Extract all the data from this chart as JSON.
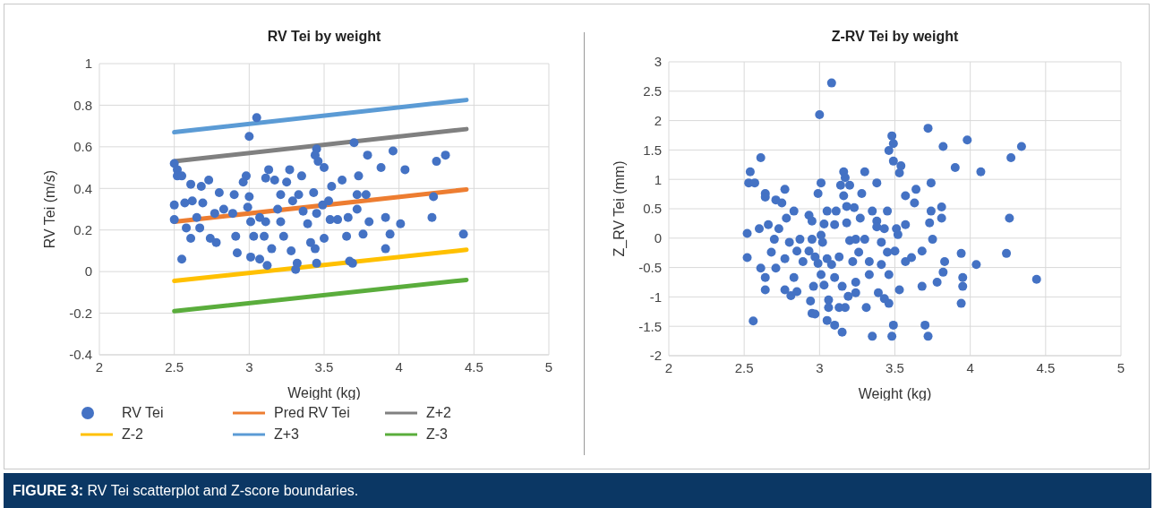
{
  "chart_data": [
    {
      "type": "scatter",
      "title": "RV Tei by weight",
      "xlabel": "Weight (kg)",
      "ylabel": "RV Tei (m/s)",
      "xlim": [
        2,
        5
      ],
      "xticks": [
        2,
        2.5,
        3,
        3.5,
        4,
        4.5,
        5
      ],
      "ylim": [
        -0.4,
        1
      ],
      "yticks": [
        -0.4,
        -0.2,
        0,
        0.2,
        0.4,
        0.6,
        0.8,
        1
      ],
      "grid": true,
      "legend": "bottom",
      "marker": "circle",
      "annotations": [
        "FIGURE 3: RV Tei scatterplot and Z-score boundaries."
      ],
      "series": [
        {
          "name": "RV Tei",
          "color": "#4472c4",
          "x": [
            3.05,
            3.0,
            2.5,
            2.52,
            2.52,
            2.55,
            2.61,
            2.5,
            2.5,
            2.55,
            2.57,
            2.62,
            2.68,
            2.73,
            2.69,
            2.65,
            2.58,
            2.61,
            2.67,
            2.74,
            2.77,
            2.8,
            2.83,
            2.78,
            2.9,
            2.89,
            2.91,
            2.92,
            2.98,
            2.96,
            3.0,
            2.99,
            3.01,
            3.01,
            3.07,
            3.03,
            3.07,
            3.1,
            3.13,
            3.11,
            3.17,
            3.12,
            3.15,
            3.11,
            3.19,
            3.21,
            3.25,
            3.27,
            3.21,
            3.23,
            3.28,
            3.31,
            3.32,
            3.29,
            3.35,
            3.33,
            3.36,
            3.39,
            3.41,
            3.44,
            3.43,
            3.45,
            3.44,
            3.46,
            3.5,
            3.45,
            3.45,
            3.49,
            3.5,
            3.55,
            3.53,
            3.59,
            3.54,
            3.62,
            3.66,
            3.65,
            3.69,
            3.67,
            3.7,
            3.73,
            3.72,
            3.72,
            3.78,
            3.79,
            3.8,
            3.76,
            3.88,
            3.91,
            3.94,
            3.91,
            3.96,
            4.04,
            4.01,
            4.22,
            4.23,
            4.25,
            4.31,
            4.43
          ],
          "values": [
            0.74,
            0.65,
            0.52,
            0.49,
            0.46,
            0.46,
            0.42,
            0.32,
            0.25,
            0.06,
            0.33,
            0.34,
            0.41,
            0.44,
            0.33,
            0.26,
            0.21,
            0.16,
            0.21,
            0.16,
            0.28,
            0.38,
            0.3,
            0.14,
            0.37,
            0.28,
            0.17,
            0.09,
            0.46,
            0.43,
            0.36,
            0.31,
            0.24,
            0.07,
            0.06,
            0.17,
            0.26,
            0.17,
            0.49,
            0.45,
            0.44,
            0.03,
            0.11,
            0.24,
            0.3,
            0.37,
            0.43,
            0.49,
            0.24,
            0.17,
            0.1,
            0.01,
            0.04,
            0.34,
            0.46,
            0.37,
            0.29,
            0.23,
            0.14,
            0.11,
            0.38,
            0.59,
            0.56,
            0.53,
            0.5,
            0.04,
            0.28,
            0.32,
            0.16,
            0.41,
            0.34,
            0.25,
            0.25,
            0.44,
            0.26,
            0.17,
            0.04,
            0.05,
            0.62,
            0.46,
            0.37,
            0.3,
            0.37,
            0.56,
            0.24,
            0.18,
            0.5,
            0.26,
            0.18,
            0.11,
            0.58,
            0.49,
            0.23,
            0.26,
            0.36,
            0.53,
            0.56,
            0.18
          ]
        },
        {
          "name": "Pred RV Tei",
          "type": "line",
          "marker": "none",
          "color": "#ed7d31",
          "x": [
            2.5,
            4.45
          ],
          "values": [
            0.24,
            0.395
          ]
        },
        {
          "name": "Z+2",
          "type": "line",
          "marker": "none",
          "color": "#808080",
          "x": [
            2.5,
            4.45
          ],
          "values": [
            0.53,
            0.685
          ]
        },
        {
          "name": "Z-2",
          "type": "line",
          "marker": "none",
          "color": "#ffc000",
          "x": [
            2.5,
            4.45
          ],
          "values": [
            -0.045,
            0.105
          ]
        },
        {
          "name": "Z+3",
          "type": "line",
          "marker": "none",
          "color": "#5b9bd5",
          "x": [
            2.5,
            4.45
          ],
          "values": [
            0.67,
            0.825
          ]
        },
        {
          "name": "Z-3",
          "type": "line",
          "marker": "none",
          "color": "#5aad3c",
          "x": [
            2.5,
            4.45
          ],
          "values": [
            -0.19,
            -0.04
          ]
        }
      ]
    },
    {
      "type": "scatter",
      "title": "Z-RV Tei by weight",
      "xlabel": "Weight (kg)",
      "ylabel": "Z_RV Tei (mm)",
      "xlim": [
        2,
        5
      ],
      "xticks": [
        2,
        2.5,
        3,
        3.5,
        4,
        4.5,
        5
      ],
      "ylim": [
        -2,
        3
      ],
      "yticks": [
        -2,
        -1.5,
        -1,
        -0.5,
        0,
        0.5,
        1,
        1.5,
        2,
        2.5,
        3
      ],
      "grid": true,
      "marker": "circle",
      "series": [
        {
          "color": "#4472c4",
          "x": [
            3.08,
            3.0,
            3.72,
            3.48,
            3.49,
            3.46,
            3.82,
            3.98,
            4.34,
            4.27,
            4.07,
            3.9,
            2.61,
            2.54,
            2.53,
            2.57,
            3.49,
            3.54,
            3.53,
            3.16,
            3.17,
            3.3,
            3.38,
            3.01,
            3.14,
            3.2,
            2.99,
            2.77,
            2.64,
            2.64,
            2.71,
            2.75,
            3.16,
            3.28,
            3.74,
            3.64,
            3.57,
            3.63,
            3.18,
            3.23,
            3.45,
            3.74,
            3.81,
            3.81,
            3.73,
            3.05,
            3.11,
            3.35,
            2.93,
            2.95,
            2.83,
            2.78,
            3.03,
            3.1,
            3.18,
            3.27,
            3.38,
            3.38,
            3.43,
            3.57,
            3.51,
            3.52,
            4.26,
            2.52,
            2.6,
            2.66,
            2.73,
            2.7,
            2.8,
            2.87,
            2.95,
            3.01,
            3.02,
            3.2,
            3.24,
            3.3,
            3.41,
            3.75,
            2.52,
            2.61,
            2.68,
            2.71,
            2.77,
            2.85,
            2.89,
            2.93,
            2.97,
            2.99,
            3.05,
            3.08,
            3.13,
            3.22,
            3.26,
            3.33,
            3.41,
            3.45,
            3.5,
            3.57,
            3.61,
            3.68,
            3.83,
            3.94,
            4.24,
            4.04,
            3.01,
            3.1,
            3.03,
            2.96,
            2.83,
            2.64,
            2.64,
            2.77,
            2.81,
            2.85,
            3.15,
            3.24,
            3.24,
            3.33,
            3.46,
            3.53,
            3.68,
            3.78,
            3.82,
            3.95,
            3.95,
            4.44,
            3.39,
            3.43,
            3.46,
            3.19,
            3.06,
            3.06,
            3.13,
            3.17,
            3.31,
            2.94,
            2.95,
            2.97,
            3.94,
            2.56,
            3.05,
            3.1,
            3.15,
            3.49,
            3.7,
            3.35,
            3.48,
            3.72
          ],
          "values": [
            2.64,
            2.1,
            1.87,
            1.74,
            1.61,
            1.49,
            1.56,
            1.67,
            1.56,
            1.37,
            1.13,
            1.2,
            1.37,
            1.13,
            0.94,
            0.94,
            1.31,
            1.23,
            1.11,
            1.13,
            1.03,
            1.13,
            0.94,
            0.94,
            0.9,
            0.9,
            0.76,
            0.83,
            0.76,
            0.7,
            0.65,
            0.6,
            0.72,
            0.76,
            0.94,
            0.83,
            0.72,
            0.6,
            0.54,
            0.52,
            0.46,
            0.46,
            0.53,
            0.34,
            0.26,
            0.46,
            0.46,
            0.46,
            0.39,
            0.29,
            0.46,
            0.34,
            0.24,
            0.23,
            0.26,
            0.34,
            0.29,
            0.19,
            0.16,
            0.23,
            0.16,
            0.06,
            0.34,
            0.08,
            0.16,
            0.23,
            0.16,
            -0.02,
            -0.07,
            -0.02,
            -0.02,
            0.05,
            -0.07,
            -0.04,
            -0.02,
            -0.02,
            -0.07,
            -0.02,
            -0.33,
            -0.51,
            -0.24,
            -0.51,
            -0.35,
            -0.22,
            -0.4,
            -0.22,
            -0.32,
            -0.43,
            -0.35,
            -0.45,
            -0.32,
            -0.4,
            -0.24,
            -0.4,
            -0.45,
            -0.24,
            -0.22,
            -0.4,
            -0.33,
            -0.22,
            -0.4,
            -0.26,
            -0.26,
            -0.45,
            -0.62,
            -0.67,
            -0.8,
            -0.82,
            -0.67,
            -0.67,
            -0.88,
            -0.88,
            -0.98,
            -0.91,
            -0.82,
            -0.75,
            -0.93,
            -0.62,
            -0.62,
            -0.88,
            -0.82,
            -0.75,
            -0.58,
            -0.67,
            -0.82,
            -0.7,
            -0.93,
            -1.03,
            -1.11,
            -0.99,
            -1.05,
            -1.18,
            -1.18,
            -1.18,
            -1.18,
            -1.07,
            -1.28,
            -1.29,
            -1.11,
            -1.41,
            -1.4,
            -1.48,
            -1.6,
            -1.48,
            -1.48,
            -1.67,
            -1.67,
            -1.67
          ]
        }
      ]
    }
  ]
}
